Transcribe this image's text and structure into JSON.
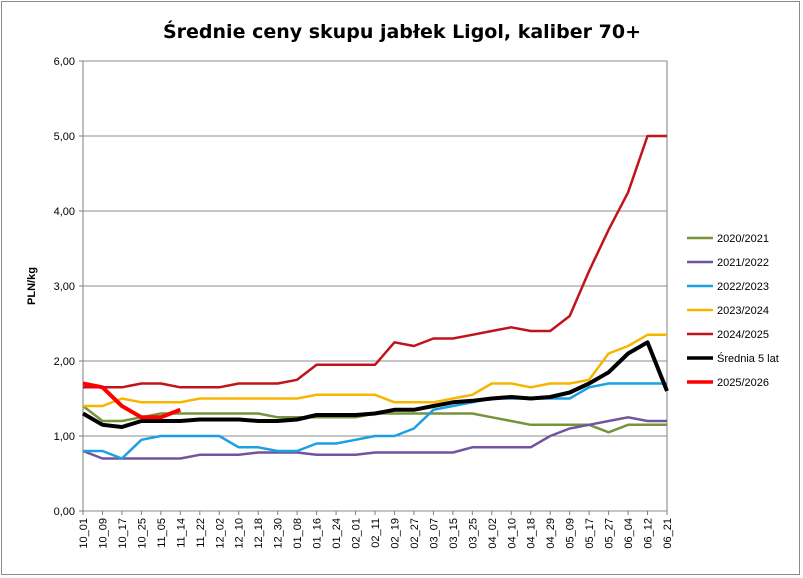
{
  "chart_data": {
    "type": "line",
    "title": "Średnie ceny skupu jabłek Ligol, kaliber 70+",
    "xlabel": "",
    "ylabel": "PLN/kg",
    "ylim": [
      0,
      6
    ],
    "yticks": [
      "0,00",
      "1,00",
      "2,00",
      "3,00",
      "4,00",
      "5,00",
      "6,00"
    ],
    "grid": "horizontal",
    "legend_position": "right",
    "x": [
      "10_01",
      "10_09",
      "10_17",
      "10_25",
      "11_05",
      "11_14",
      "11_22",
      "12_02",
      "12_10",
      "12_18",
      "12_30",
      "01_08",
      "01_16",
      "01_24",
      "02_01",
      "02_11",
      "02_19",
      "02_27",
      "03_07",
      "03_15",
      "03_25",
      "04_02",
      "04_10",
      "04_18",
      "04_29",
      "05_09",
      "05_17",
      "05_27",
      "06_04",
      "06_12",
      "06_21"
    ],
    "series": [
      {
        "name": "2020/2021",
        "color": "#77933c",
        "values": [
          1.4,
          1.2,
          1.2,
          1.25,
          1.3,
          1.3,
          1.3,
          1.3,
          1.3,
          1.3,
          1.25,
          1.25,
          1.25,
          1.25,
          1.25,
          1.3,
          1.3,
          1.3,
          1.3,
          1.3,
          1.3,
          1.25,
          1.2,
          1.15,
          1.15,
          1.15,
          1.15,
          1.05,
          1.15,
          1.15,
          1.15
        ]
      },
      {
        "name": "2021/2022",
        "color": "#7054a0",
        "values": [
          0.8,
          0.7,
          0.7,
          0.7,
          0.7,
          0.7,
          0.75,
          0.75,
          0.75,
          0.78,
          0.78,
          0.78,
          0.75,
          0.75,
          0.75,
          0.78,
          0.78,
          0.78,
          0.78,
          0.78,
          0.85,
          0.85,
          0.85,
          0.85,
          1.0,
          1.1,
          1.15,
          1.2,
          1.25,
          1.2,
          1.2
        ]
      },
      {
        "name": "2022/2023",
        "color": "#1ba1e2",
        "values": [
          0.8,
          0.8,
          0.7,
          0.95,
          1.0,
          1.0,
          1.0,
          1.0,
          0.85,
          0.85,
          0.8,
          0.8,
          0.9,
          0.9,
          0.95,
          1.0,
          1.0,
          1.1,
          1.35,
          1.4,
          1.45,
          1.5,
          1.5,
          1.5,
          1.5,
          1.5,
          1.65,
          1.7,
          1.7,
          1.7,
          1.7
        ]
      },
      {
        "name": "2023/2024",
        "color": "#f7b500",
        "values": [
          1.4,
          1.4,
          1.5,
          1.45,
          1.45,
          1.45,
          1.5,
          1.5,
          1.5,
          1.5,
          1.5,
          1.5,
          1.55,
          1.55,
          1.55,
          1.55,
          1.45,
          1.45,
          1.45,
          1.5,
          1.55,
          1.7,
          1.7,
          1.65,
          1.7,
          1.7,
          1.75,
          2.1,
          2.2,
          2.35,
          2.35
        ]
      },
      {
        "name": "2024/2025",
        "color": "#c0141c",
        "values": [
          1.65,
          1.65,
          1.65,
          1.7,
          1.7,
          1.65,
          1.65,
          1.65,
          1.7,
          1.7,
          1.7,
          1.75,
          1.95,
          1.95,
          1.95,
          1.95,
          2.25,
          2.2,
          2.3,
          2.3,
          2.35,
          2.4,
          2.45,
          2.4,
          2.4,
          2.6,
          3.2,
          3.75,
          4.25,
          5.0,
          5.0
        ]
      },
      {
        "name": "Średnia 5 lat",
        "color": "#000000",
        "values": [
          1.3,
          1.15,
          1.12,
          1.2,
          1.2,
          1.2,
          1.22,
          1.22,
          1.22,
          1.2,
          1.2,
          1.22,
          1.28,
          1.28,
          1.28,
          1.3,
          1.35,
          1.35,
          1.4,
          1.45,
          1.47,
          1.5,
          1.52,
          1.5,
          1.52,
          1.58,
          1.7,
          1.85,
          2.1,
          2.25,
          1.6
        ]
      },
      {
        "name": "2025/2026",
        "color": "#ff0000",
        "values": [
          1.7,
          1.65,
          1.4,
          1.25,
          1.25,
          1.35,
          null,
          null,
          null,
          null,
          null,
          null,
          null,
          null,
          null,
          null,
          null,
          null,
          null,
          null,
          null,
          null,
          null,
          null,
          null,
          null,
          null,
          null,
          null,
          null,
          null
        ]
      }
    ]
  }
}
